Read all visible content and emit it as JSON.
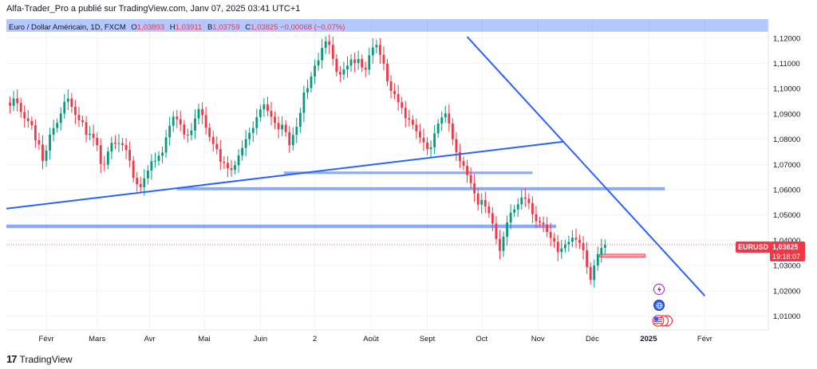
{
  "header": {
    "caption": "Alfa-Trader_Pro a publié sur TradingView.com, Janv 07, 2025 03:41 UTC+1"
  },
  "legend": {
    "symbol": "Euro / Dollar Américain, 1D, FXCM",
    "o_label": "O",
    "o": "1,03893",
    "h_label": "H",
    "h": "1,03911",
    "b_label": "B",
    "b": "1,03759",
    "c_label": "C",
    "c": "1,03825",
    "change": "−0,00068 (−0,07%)"
  },
  "price_badge": {
    "symbol": "EURUSD",
    "price": "1,03825",
    "countdown": "19:18:07"
  },
  "footer": {
    "brand": "TradingView",
    "logo": "17"
  },
  "icons": [
    "lightning-icon",
    "globe-icon",
    "us-flag-icon"
  ],
  "colors": {
    "up": "#089981",
    "down": "#f23645",
    "line": "#2962ff",
    "zone": "#2962ff"
  },
  "chart_data": {
    "type": "candlestick",
    "series_name": "EURUSD",
    "y_ticks": [
      "1,12000",
      "1,11000",
      "1,10000",
      "1,09000",
      "1,08000",
      "1,07000",
      "1,06000",
      "1,05000",
      "1,04000",
      "1,03000",
      "1,02000",
      "1,01000"
    ],
    "y_values": [
      1.12,
      1.11,
      1.1,
      1.09,
      1.08,
      1.07,
      1.06,
      1.05,
      1.04,
      1.03,
      1.02,
      1.01
    ],
    "ylim": [
      1.0045,
      1.1275
    ],
    "x_labels": [
      "Févr",
      "Mars",
      "Avr",
      "Mai",
      "Juin",
      "2",
      "Août",
      "Sept",
      "Oct",
      "Nov",
      "Déc",
      "2025",
      "Févr"
    ],
    "x_label_days": [
      22,
      50,
      79,
      109,
      140,
      170,
      201,
      232,
      262,
      293,
      323,
      354,
      385
    ],
    "x_range_days": [
      0,
      420
    ],
    "closes": [
      1.0945,
      1.0932,
      1.0961,
      1.0943,
      1.0908,
      1.0882,
      1.0872,
      1.0855,
      1.0796,
      1.0779,
      1.0714,
      1.0755,
      1.0818,
      1.0844,
      1.0864,
      1.0902,
      1.0948,
      1.0961,
      1.0928,
      1.0896,
      1.0875,
      1.0867,
      1.0817,
      1.0822,
      1.0805,
      1.0776,
      1.0702,
      1.0699,
      1.0751,
      1.0786,
      1.0782,
      1.0784,
      1.0777,
      1.0757,
      1.0715,
      1.0647,
      1.0622,
      1.061,
      1.0645,
      1.0676,
      1.0713,
      1.0714,
      1.0735,
      1.0747,
      1.0807,
      1.0853,
      1.0889,
      1.0879,
      1.0858,
      1.0818,
      1.0816,
      1.0834,
      1.0882,
      1.0919,
      1.0895,
      1.0845,
      1.0809,
      1.0781,
      1.0761,
      1.0711,
      1.0706,
      1.0685,
      1.0678,
      1.0697,
      1.0736,
      1.0765,
      1.08,
      1.0825,
      1.0844,
      1.0887,
      1.0918,
      1.0938,
      1.0912,
      1.0889,
      1.0864,
      1.0839,
      1.0857,
      1.0828,
      1.0776,
      1.0817,
      1.0849,
      1.0904,
      1.0985,
      1.1002,
      1.1048,
      1.1091,
      1.1112,
      1.1161,
      1.1187,
      1.1173,
      1.1118,
      1.1066,
      1.1056,
      1.1076,
      1.1091,
      1.1115,
      1.1101,
      1.1117,
      1.1083,
      1.1075,
      1.1132,
      1.1163,
      1.1173,
      1.1134,
      1.1099,
      1.1029,
      1.0991,
      1.0978,
      1.0946,
      1.0924,
      1.0883,
      1.0877,
      1.0857,
      1.0831,
      1.0806,
      1.0787,
      1.0761,
      1.0768,
      1.0823,
      1.0862,
      1.0886,
      1.0902,
      1.0862,
      1.08,
      1.0749,
      1.0713,
      1.0694,
      1.0658,
      1.0626,
      1.0585,
      1.0541,
      1.0559,
      1.0534,
      1.0507,
      1.0466,
      1.0405,
      1.0358,
      1.0414,
      1.047,
      1.0509,
      1.0522,
      1.0542,
      1.0569,
      1.0564,
      1.0547,
      1.0503,
      1.0475,
      1.047,
      1.0462,
      1.0433,
      1.0409,
      1.0394,
      1.0353,
      1.0368,
      1.0384,
      1.0394,
      1.041,
      1.0402,
      1.0389,
      1.036,
      1.0294,
      1.0243,
      1.03,
      1.0345,
      1.037,
      1.0382
    ],
    "candle_day_start": 0,
    "candle_day_step": 2,
    "last_close": 1.03825,
    "annotations": {
      "zones": [
        {
          "x0": 0,
          "x1": 420,
          "y0": 1.1225,
          "y1": 1.1275
        },
        {
          "x0": 0,
          "x1": 303,
          "y0": 1.0448,
          "y1": 1.0462
        },
        {
          "x0": 94,
          "x1": 363,
          "y0": 1.0598,
          "y1": 1.061
        },
        {
          "x0": 153,
          "x1": 290,
          "y0": 1.0662,
          "y1": 1.0672
        }
      ],
      "lines": [
        {
          "x0": 0,
          "y0": 1.0525,
          "x1": 307,
          "y1": 1.079
        },
        {
          "x0": 254,
          "y0": 1.1205,
          "x1": 385,
          "y1": 1.018
        }
      ],
      "range_box": {
        "x0": 327,
        "x1": 352,
        "y0": 1.0333,
        "y1": 1.0345
      }
    }
  }
}
